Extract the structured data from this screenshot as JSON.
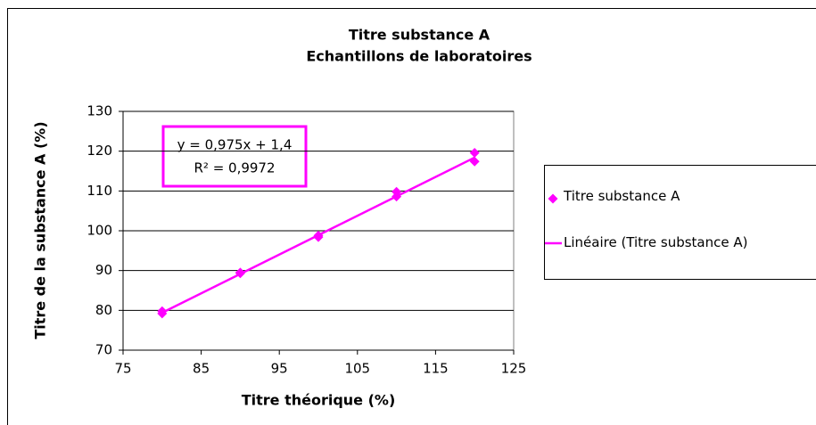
{
  "chart_data": {
    "type": "scatter",
    "title": "Titre substance A",
    "subtitle": "Echantillons de laboratoires",
    "xlabel": "Titre théorique (%)",
    "ylabel": "Titre de la substance A (%)",
    "xlim": [
      75,
      125
    ],
    "xticks": [
      75,
      85,
      95,
      105,
      115,
      125
    ],
    "ylim": [
      70,
      130
    ],
    "yticks": [
      70,
      80,
      90,
      100,
      110,
      120,
      130
    ],
    "grid": true,
    "legend": "right",
    "series": [
      {
        "name": "Titre substance A",
        "type": "scatter",
        "color": "#ff00ff",
        "x": [
          80,
          80,
          90,
          90,
          100,
          100,
          110,
          110,
          120,
          120
        ],
        "values": [
          79.8,
          79.2,
          89.5,
          89.3,
          98.8,
          98.4,
          109.8,
          108.6,
          119.6,
          117.4
        ]
      },
      {
        "name": "Linéaire (Titre substance A)",
        "type": "line",
        "color": "#ff00ff",
        "x": [
          80,
          120
        ],
        "values": [
          79.4,
          118.4
        ]
      }
    ],
    "annotations": [
      "y = 0,975x + 1,4",
      "R² = 0,9972"
    ]
  }
}
